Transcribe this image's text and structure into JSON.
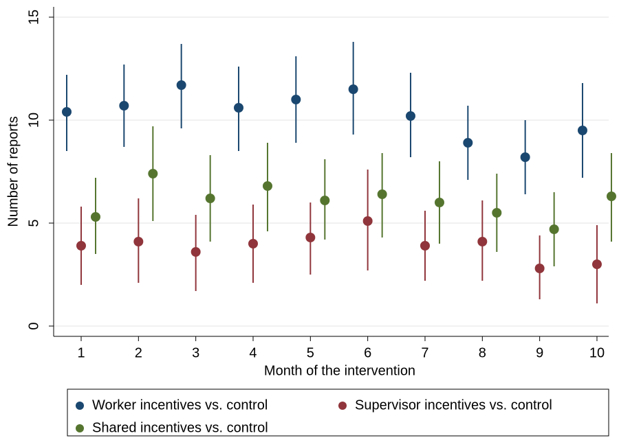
{
  "chart_data": {
    "type": "errorbar",
    "xlabel": "Month of the intervention",
    "ylabel": "Number of reports",
    "categories": [
      "1",
      "2",
      "3",
      "4",
      "5",
      "6",
      "7",
      "8",
      "9",
      "10"
    ],
    "ylim": [
      -0.5,
      15.5
    ],
    "yticks": [
      0,
      5,
      10,
      15
    ],
    "grid": true,
    "series": [
      {
        "name": "Worker incentives vs. control",
        "color": "#1a476f",
        "values": [
          10.4,
          10.7,
          11.7,
          10.6,
          11.0,
          11.5,
          10.2,
          8.9,
          8.2,
          9.5
        ],
        "low": [
          8.5,
          8.7,
          9.6,
          8.5,
          8.9,
          9.3,
          8.2,
          7.1,
          6.4,
          7.2
        ],
        "high": [
          12.2,
          12.7,
          13.7,
          12.6,
          13.1,
          13.8,
          12.3,
          10.7,
          10.0,
          11.8
        ]
      },
      {
        "name": "Supervisor incentives vs. control",
        "color": "#90353b",
        "values": [
          3.9,
          4.1,
          3.6,
          4.0,
          4.3,
          5.1,
          3.9,
          4.1,
          2.8,
          3.0
        ],
        "low": [
          2.0,
          2.1,
          1.7,
          2.1,
          2.5,
          2.7,
          2.2,
          2.2,
          1.3,
          1.1
        ],
        "high": [
          5.8,
          6.2,
          5.4,
          5.9,
          6.0,
          7.6,
          5.6,
          6.1,
          4.4,
          4.9
        ]
      },
      {
        "name": "Shared incentives vs. control",
        "color": "#55752f",
        "values": [
          5.3,
          7.4,
          6.2,
          6.8,
          6.1,
          6.4,
          6.0,
          5.5,
          4.7,
          6.3
        ],
        "low": [
          3.5,
          5.1,
          4.1,
          4.6,
          4.2,
          4.3,
          4.0,
          3.6,
          2.9,
          4.1
        ],
        "high": [
          7.2,
          9.7,
          8.3,
          8.9,
          8.1,
          8.4,
          8.0,
          7.4,
          6.5,
          8.4
        ]
      }
    ]
  }
}
